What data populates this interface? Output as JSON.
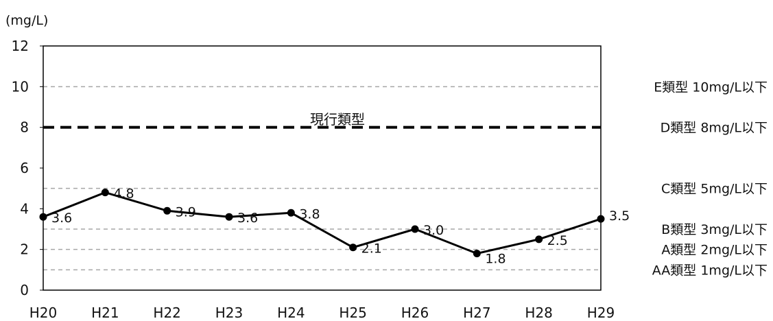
{
  "chart_data": {
    "type": "line",
    "unit_label": "(mg/L)",
    "categories": [
      "H20",
      "H21",
      "H22",
      "H23",
      "H24",
      "H25",
      "H26",
      "H27",
      "H28",
      "H29"
    ],
    "values": [
      3.6,
      4.8,
      3.9,
      3.6,
      3.8,
      2.1,
      3.0,
      1.8,
      2.5,
      3.5
    ],
    "data_labels": [
      "3.6",
      "4.8",
      "3.9",
      "3.6",
      "3.8",
      "2.1",
      "3.0",
      "1.8",
      "2.5",
      "3.5"
    ],
    "ylim": [
      0,
      12
    ],
    "yticks": [
      "0",
      "2",
      "4",
      "6",
      "8",
      "10",
      "12"
    ],
    "reference_lines": [
      {
        "value": 10,
        "label": "E類型 10mg/L以下",
        "style": "dashed-gray"
      },
      {
        "value": 8,
        "label": "D類型  8mg/L以下",
        "style": "dashed-bold-black"
      },
      {
        "value": 5,
        "label": "C類型  5mg/L以下",
        "style": "dashed-gray"
      },
      {
        "value": 3,
        "label": "B類型  3mg/L以下",
        "style": "dashed-gray"
      },
      {
        "value": 2,
        "label": "A類型  2mg/L以下",
        "style": "dashed-gray"
      },
      {
        "value": 1,
        "label": "AA類型  1mg/L以下",
        "style": "dashed-gray"
      }
    ],
    "annotation": "現行類型",
    "grid": false,
    "colors": {
      "line": "#000000",
      "ref_gray": "#a6a6a6",
      "ref_bold": "#000000"
    }
  }
}
